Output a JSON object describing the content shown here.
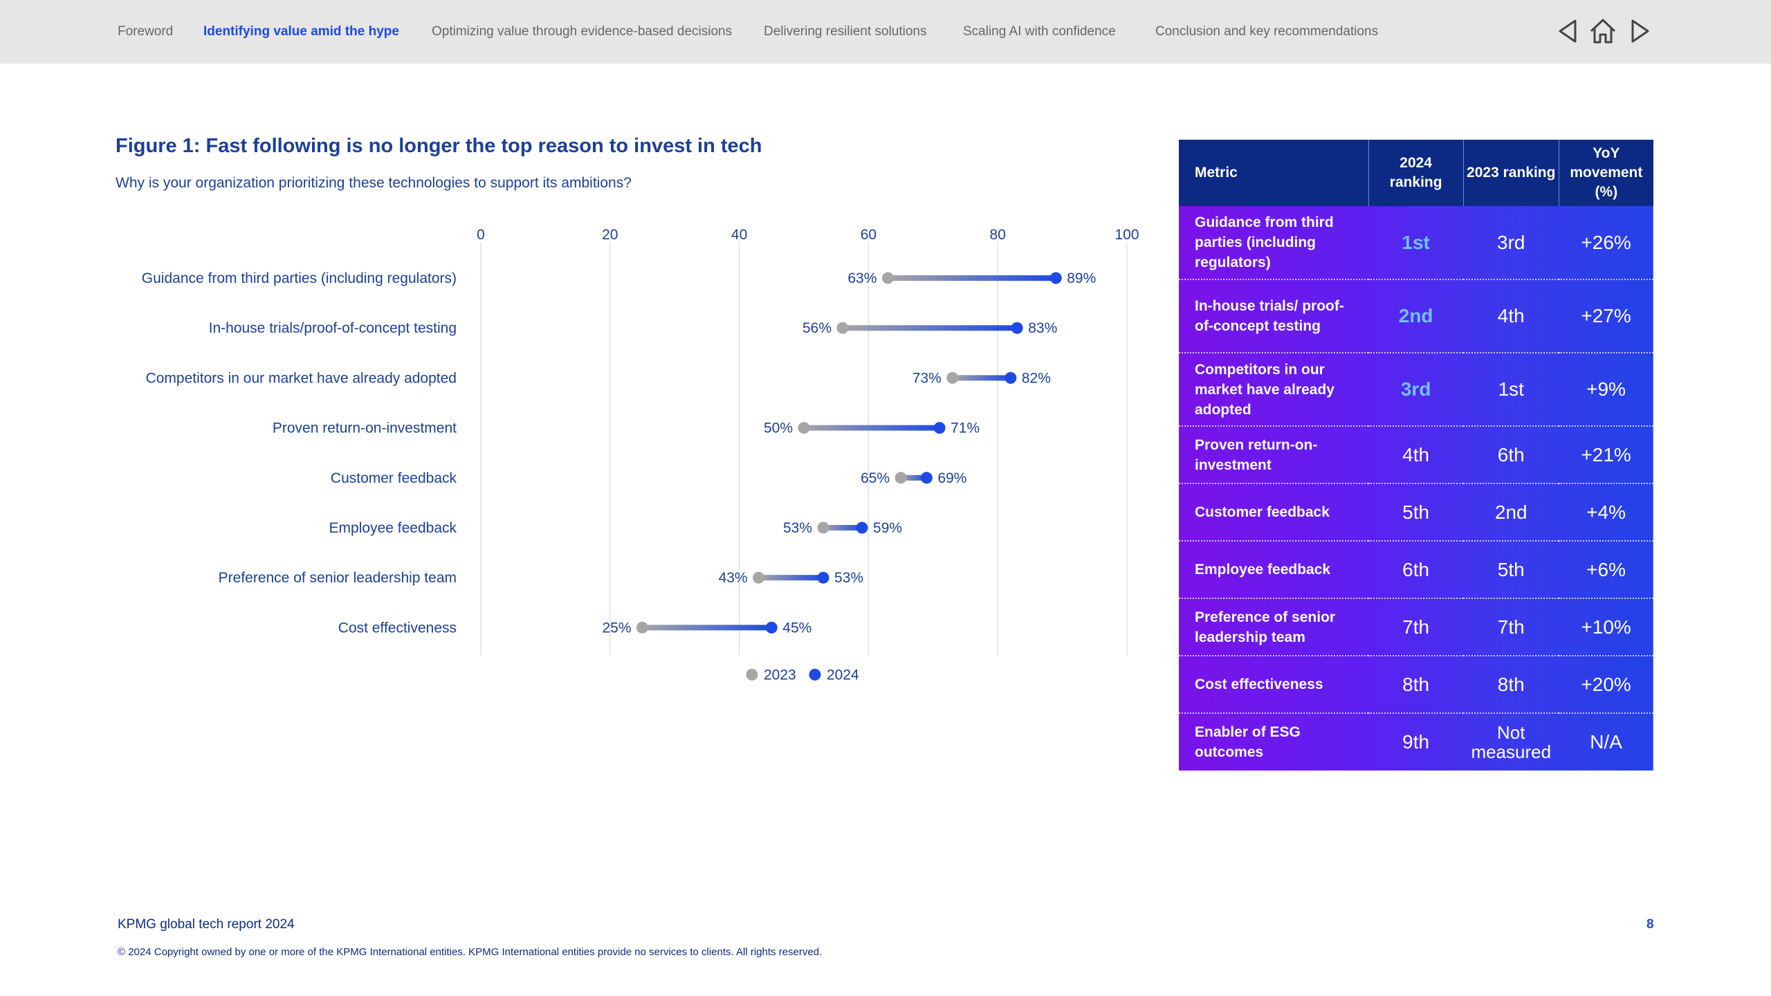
{
  "nav": {
    "items": [
      "Foreword",
      "Identifying value amid the hype",
      "Optimizing value through evidence-based decisions",
      "Delivering resilient solutions",
      "Scaling AI with confidence",
      "Conclusion and key recommendations"
    ],
    "active_index": 1,
    "icons": [
      "triangle-left-icon",
      "home-icon",
      "triangle-right-icon"
    ]
  },
  "figure": {
    "title": "Figure 1: Fast following is no longer the top reason to invest in tech",
    "subtitle": "Why is your organization prioritizing these technologies to support its ambitions?"
  },
  "chart_data": {
    "type": "dumbbell",
    "xlim": [
      0,
      100
    ],
    "xticks": [
      0,
      20,
      40,
      60,
      80,
      100
    ],
    "categories": [
      "Guidance from third parties (including regulators)",
      "In-house trials/proof-of-concept testing",
      "Competitors in our market have already adopted",
      "Proven return-on-investment",
      "Customer feedback",
      "Employee feedback",
      "Preference of senior leadership team",
      "Cost effectiveness"
    ],
    "series": [
      {
        "name": "2023",
        "color": "#a6a6a6",
        "values": [
          63,
          56,
          73,
          50,
          65,
          53,
          43,
          25
        ]
      },
      {
        "name": "2024",
        "color": "#1e49e2",
        "values": [
          89,
          83,
          82,
          71,
          69,
          59,
          53,
          45
        ]
      }
    ],
    "value_suffix": "%",
    "legend_position": "bottom-center",
    "grid": true
  },
  "table": {
    "headers": [
      "Metric",
      "2024 ranking",
      "2023 ranking",
      "YoY movement (%)"
    ],
    "rows": [
      {
        "metric": "Guidance from third parties (including regulators)",
        "r2024": "1st",
        "r2023": "3rd",
        "yoy": "+26%",
        "highlight": true
      },
      {
        "metric": "In-house trials/ proof-of-concept testing",
        "r2024": "2nd",
        "r2023": "4th",
        "yoy": "+27%",
        "highlight": true
      },
      {
        "metric": "Competitors in our market have already adopted",
        "r2024": "3rd",
        "r2023": "1st",
        "yoy": "+9%",
        "highlight": true
      },
      {
        "metric": "Proven return-on-investment",
        "r2024": "4th",
        "r2023": "6th",
        "yoy": "+21%",
        "highlight": false
      },
      {
        "metric": "Customer feedback",
        "r2024": "5th",
        "r2023": "2nd",
        "yoy": "+4%",
        "highlight": false
      },
      {
        "metric": "Employee feedback",
        "r2024": "6th",
        "r2023": "5th",
        "yoy": "+6%",
        "highlight": false
      },
      {
        "metric": "Preference of senior leadership team",
        "r2024": "7th",
        "r2023": "7th",
        "yoy": "+10%",
        "highlight": false
      },
      {
        "metric": "Cost effectiveness",
        "r2024": "8th",
        "r2023": "8th",
        "yoy": "+20%",
        "highlight": false
      },
      {
        "metric": "Enabler of ESG outcomes",
        "r2024": "9th",
        "r2023": "Not measured",
        "yoy": "N/A",
        "highlight": false
      }
    ]
  },
  "footer": {
    "report": "KPMG global tech report 2024",
    "page": "8",
    "copyright": "© 2024 Copyright owned by one or more of the KPMG International entities. KPMG International entities provide no services to clients. All rights reserved."
  }
}
